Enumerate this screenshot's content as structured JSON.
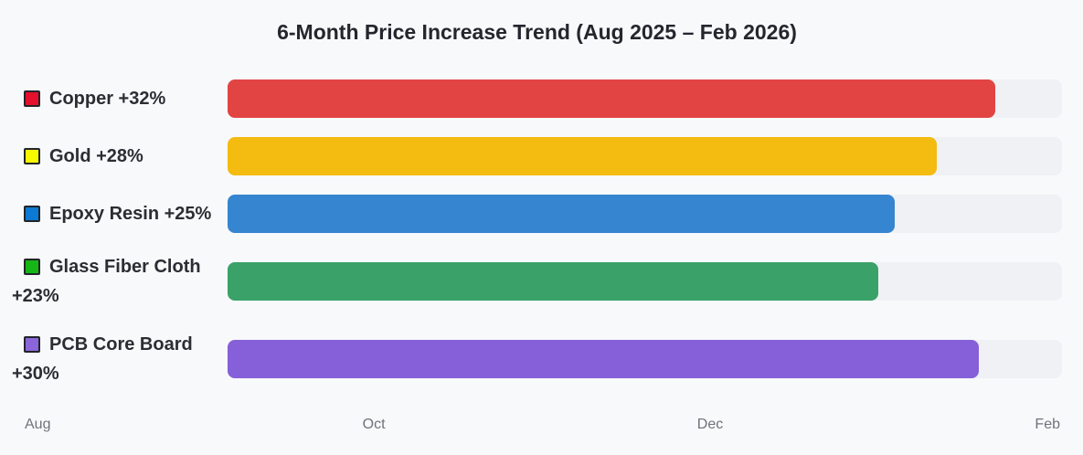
{
  "title": "6-Month Price Increase Trend (Aug 2025 – Feb 2026)",
  "chart_data": {
    "type": "bar",
    "orientation": "horizontal",
    "title": "6-Month Price Increase Trend (Aug 2025 – Feb 2026)",
    "categories": [
      "Copper",
      "Gold",
      "Epoxy Resin",
      "Glass Fiber Cloth",
      "PCB Core Board"
    ],
    "values": [
      32,
      28,
      25,
      23,
      30
    ],
    "value_unit": "percent price increase over 6 months",
    "x_axis_ticks": [
      "Aug",
      "Oct",
      "Dec",
      "Feb"
    ],
    "x_axis_range": [
      "Aug 2025",
      "Feb 2026"
    ],
    "legend_position": "left",
    "grid": false,
    "series": [
      {
        "name": "Copper",
        "label": "Copper +32%",
        "value_pct": 32,
        "bar_color": "#e24444",
        "swatch_color": "#e5102d",
        "bar_length_pct_of_track": 92
      },
      {
        "name": "Gold",
        "label": "Gold +28%",
        "value_pct": 28,
        "bar_color": "#f4bb10",
        "swatch_color": "#f8f800",
        "bar_length_pct_of_track": 85
      },
      {
        "name": "Epoxy Resin",
        "label": "Epoxy Resin +25%",
        "value_pct": 25,
        "bar_color": "#3585d0",
        "swatch_color": "#0b7ad4",
        "bar_length_pct_of_track": 80
      },
      {
        "name": "Glass Fiber Cloth",
        "label": "Glass Fiber Cloth +23%",
        "value_pct": 23,
        "bar_color": "#3aa169",
        "swatch_color": "#16b616",
        "bar_length_pct_of_track": 78
      },
      {
        "name": "PCB Core Board",
        "label": "PCB Core Board +30%",
        "value_pct": 30,
        "bar_color": "#8560d8",
        "swatch_color": "#8b66db",
        "bar_length_pct_of_track": 90
      }
    ]
  },
  "colors": {
    "background": "#f8f9fb",
    "bar_track": "#eff1f4",
    "title_text": "#24262e",
    "legend_text": "#2b2d33",
    "axis_text": "#6e737a",
    "swatch_border": "#222529"
  }
}
